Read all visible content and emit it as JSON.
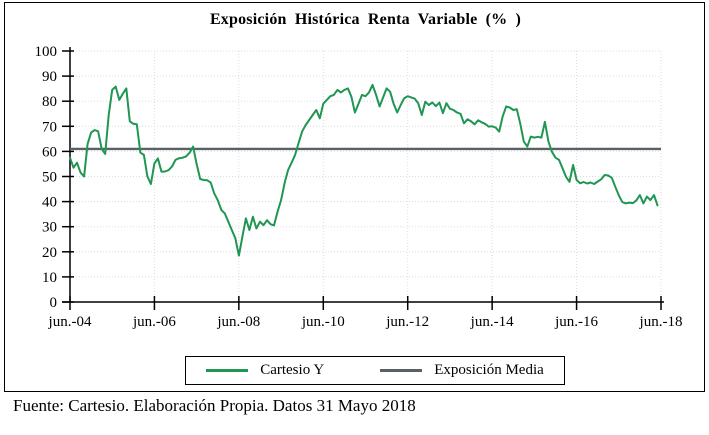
{
  "title": "Exposición  Histórica Renta Variable (% )",
  "footer": "Fuente: Cartesio. Elaboración Propia. Datos 31 Mayo 2018",
  "legend": {
    "items": [
      {
        "label": "Cartesio Y",
        "color": "#1f9652"
      },
      {
        "label": "Exposición Media",
        "color": "#596066"
      }
    ]
  },
  "chart_data": {
    "type": "line",
    "title": "Exposición  Histórica Renta Variable (% )",
    "xlabel": "",
    "ylabel": "",
    "ylim": [
      0,
      100
    ],
    "y_ticks": [
      0,
      10,
      20,
      30,
      40,
      50,
      60,
      70,
      80,
      90,
      100
    ],
    "x_tick_labels": [
      "jun.-04",
      "jun.-06",
      "jun.-08",
      "jun.-10",
      "jun.-12",
      "jun.-14",
      "jun.-16",
      "jun.-18"
    ],
    "x_unit": "month",
    "x_start": "jun-2004",
    "x_end": "may-2018",
    "grid": true,
    "legend_position": "bottom",
    "series": [
      {
        "name": "Cartesio Y",
        "color": "#1f9652",
        "values": [
          57.5,
          53.5,
          55.5,
          51.5,
          50,
          63,
          67.5,
          68.5,
          68,
          61,
          59,
          74.5,
          84.5,
          85.8,
          80.5,
          83,
          85.1,
          72,
          71,
          70.8,
          59.5,
          58.6,
          50,
          47,
          55.2,
          57.2,
          51.9,
          52,
          52.5,
          54,
          56.6,
          57.3,
          57.5,
          58,
          59.5,
          61.9,
          55,
          49,
          48.6,
          48.5,
          47.6,
          43.3,
          40.5,
          36.7,
          35.3,
          32,
          28.7,
          25.4,
          18.5,
          26,
          33.3,
          28.7,
          34,
          29.3,
          32,
          30.6,
          32.6,
          31,
          30.5,
          36,
          40.6,
          47.4,
          52.6,
          55.5,
          58.6,
          63.5,
          68,
          70.5,
          72.5,
          74.5,
          76.5,
          73.2,
          79,
          80.5,
          82,
          82.5,
          84.5,
          83.5,
          84.5,
          85.1,
          81.8,
          75.5,
          79,
          82.5,
          82,
          83.5,
          86.5,
          82.5,
          77.9,
          81.5,
          85.1,
          83.8,
          79,
          75.5,
          78.5,
          81.2,
          82,
          81.5,
          81,
          79.1,
          74.5,
          79.8,
          78.5,
          79.5,
          78,
          79.5,
          75.2,
          79.2,
          77,
          76.5,
          75.5,
          75,
          71.2,
          72.8,
          72,
          70.8,
          72.4,
          71.6,
          71,
          69.9,
          70,
          69.5,
          67.9,
          74,
          77.9,
          77.5,
          76.5,
          76.8,
          71,
          63.9,
          61.9,
          65.9,
          65.5,
          65.8,
          65.5,
          71.8,
          64,
          59.9,
          57.5,
          56.6,
          53.3,
          49.9,
          47.9,
          54.6,
          48.6,
          47.3,
          47.8,
          47.2,
          47.6,
          47,
          48,
          48.9,
          50.6,
          50.4,
          49.5,
          45.9,
          42.5,
          39.8,
          39.3,
          39.6,
          39.4,
          40.5,
          42.6,
          39.3,
          42,
          40.6,
          42.6,
          38.5
        ]
      },
      {
        "name": "Exposición Media",
        "color": "#596066",
        "constant": 61
      }
    ]
  }
}
